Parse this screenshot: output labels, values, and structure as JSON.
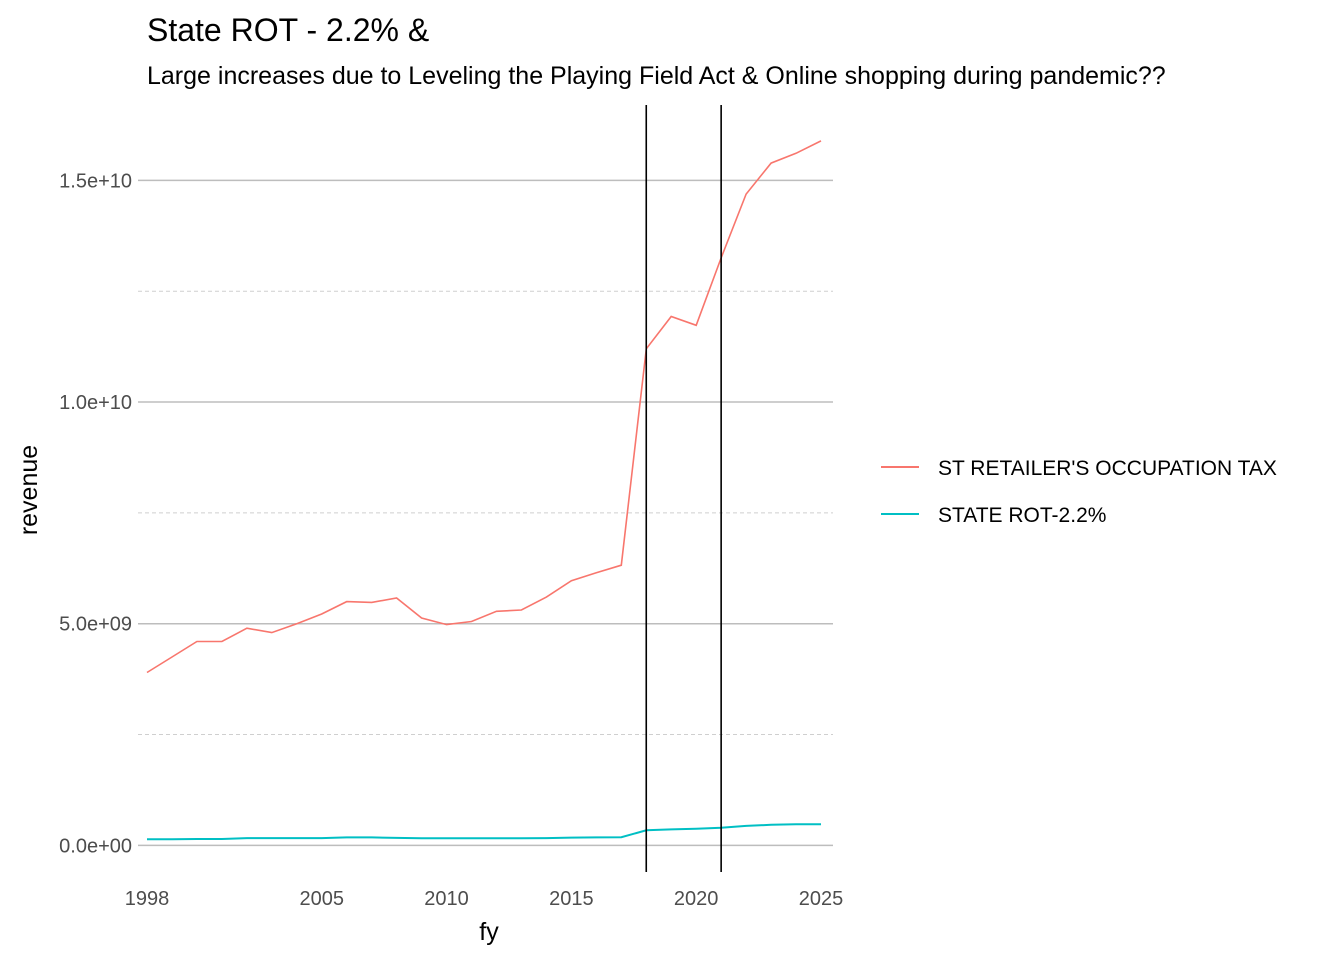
{
  "chart_data": {
    "type": "line",
    "title": "State ROT - 2.2% &",
    "subtitle": "Large increases due to Leveling the Playing Field Act & Online shopping during pandemic??",
    "xlabel": "fy",
    "ylabel": "revenue",
    "xlim": [
      1998,
      2025
    ],
    "ylim": [
      -600000000,
      16700000000
    ],
    "x_ticks": [
      1998,
      2005,
      2010,
      2015,
      2020,
      2025
    ],
    "x_tick_labels": [
      "1998",
      "2005",
      "2010",
      "2015",
      "2020",
      "2025"
    ],
    "y_ticks": [
      0,
      5000000000,
      10000000000,
      15000000000
    ],
    "y_tick_labels": [
      "0.0e+00",
      "5.0e+09",
      "1.0e+10",
      "1.5e+10"
    ],
    "y_minor_ticks": [
      2500000000,
      7500000000,
      12500000000
    ],
    "grid": true,
    "legend_position": "right",
    "vlines": [
      2018,
      2021
    ],
    "vline_color": "#000000",
    "x": [
      1998,
      1999,
      2000,
      2001,
      2002,
      2003,
      2004,
      2005,
      2006,
      2007,
      2008,
      2009,
      2010,
      2011,
      2012,
      2013,
      2014,
      2015,
      2016,
      2017,
      2018,
      2019,
      2020,
      2021,
      2022,
      2023,
      2024,
      2025
    ],
    "series": [
      {
        "name": "ST RETAILER'S OCCUPATION TAX",
        "color": "#F8766D",
        "values": [
          3900000000,
          4250000000,
          4600000000,
          4600000000,
          4900000000,
          4800000000,
          5000000000,
          5220000000,
          5500000000,
          5480000000,
          5580000000,
          5130000000,
          4980000000,
          5050000000,
          5280000000,
          5310000000,
          5600000000,
          5970000000,
          6150000000,
          6320000000,
          11200000000,
          11930000000,
          11730000000,
          13250000000,
          14690000000,
          15390000000,
          15610000000,
          15890000000
        ]
      },
      {
        "name": "STATE ROT-2.2%",
        "color": "#00BFC4",
        "values": [
          140000000,
          140000000,
          145000000,
          145000000,
          165000000,
          165000000,
          165000000,
          165000000,
          180000000,
          180000000,
          170000000,
          160000000,
          160000000,
          160000000,
          160000000,
          160000000,
          165000000,
          175000000,
          180000000,
          185000000,
          340000000,
          360000000,
          375000000,
          400000000,
          440000000,
          465000000,
          475000000,
          475000000
        ]
      }
    ]
  }
}
